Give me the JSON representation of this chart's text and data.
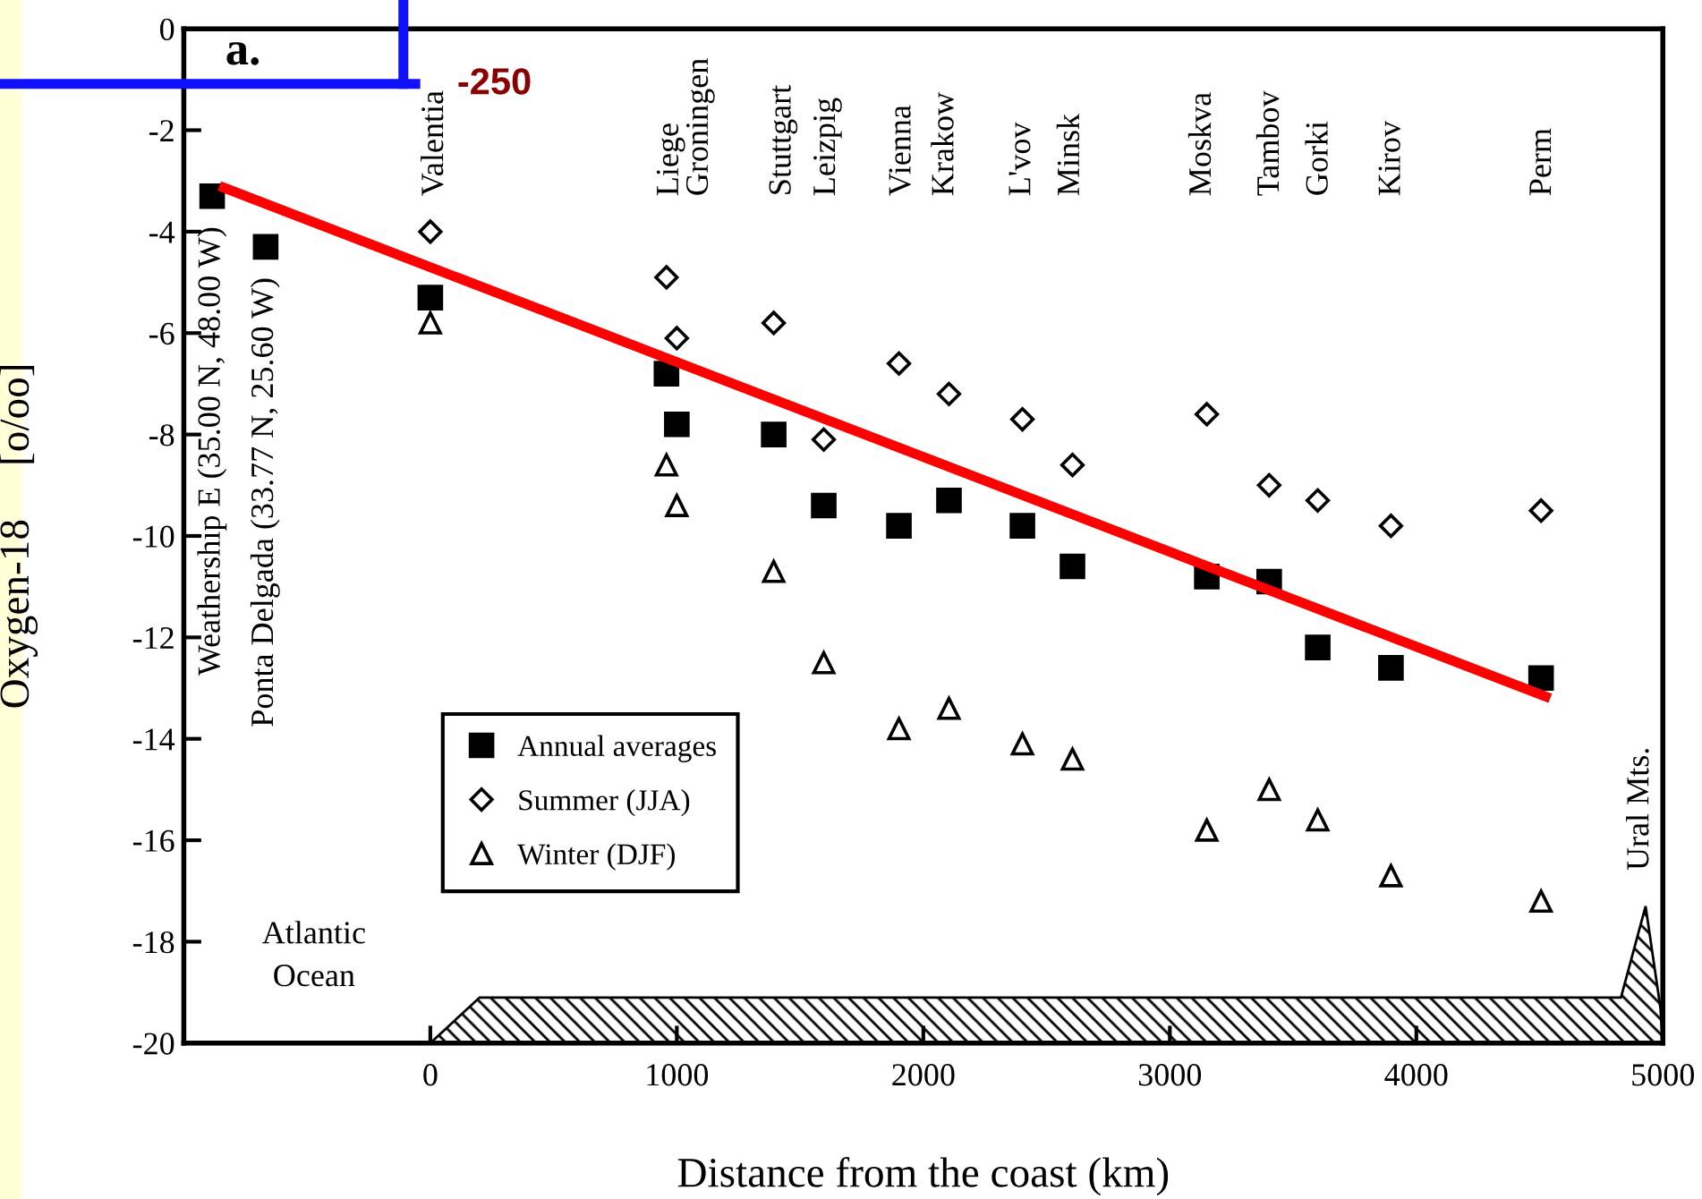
{
  "chart_data": {
    "type": "scatter",
    "xlabel": "Distance from the coast (km)",
    "ylabel": "Oxygen-18     [o/oo]",
    "xlim": [
      -1000,
      5000
    ],
    "xticks": [
      {
        "value": -1000,
        "label": null
      },
      0,
      1000,
      2000,
      3000,
      4000,
      5000
    ],
    "ylim": [
      -20,
      0
    ],
    "yticks": [
      -20,
      -18,
      -16,
      -14,
      -12,
      -10,
      -8,
      -6,
      -4,
      -2,
      0
    ],
    "grid": false,
    "legend": "bottom left",
    "series": [
      {
        "name": "Annual averages",
        "marker": "square",
        "color": "#000000",
        "x": [
          -885,
          -668,
          0,
          958,
          1000,
          1393,
          1596,
          1901,
          2104,
          2402,
          2605,
          3150,
          3403,
          3600,
          3897,
          4506
        ],
        "values": [
          -3.3,
          -4.3,
          -5.3,
          -6.8,
          -7.8,
          -8.0,
          -9.4,
          -9.8,
          -9.3,
          -9.8,
          -10.6,
          -10.8,
          -10.9,
          -12.2,
          -12.6,
          -12.8
        ]
      },
      {
        "name": "Summer (JJA)",
        "marker": "diamond",
        "color": "#000000",
        "x": [
          0,
          958,
          1000,
          1393,
          1596,
          1901,
          2104,
          2402,
          2605,
          3150,
          3403,
          3600,
          3897,
          4506
        ],
        "values": [
          -4.0,
          -4.9,
          -6.1,
          -5.8,
          -8.1,
          -6.6,
          -7.2,
          -7.7,
          -8.6,
          -7.6,
          -9.0,
          -9.3,
          -9.8,
          -9.5
        ]
      },
      {
        "name": "Winter (DJF)",
        "marker": "triangle",
        "color": "#000000",
        "x": [
          0,
          958,
          1000,
          1393,
          1596,
          1901,
          2104,
          2402,
          2605,
          3150,
          3403,
          3600,
          3897,
          4506
        ],
        "values": [
          -5.8,
          -8.6,
          -9.4,
          -10.7,
          -12.5,
          -13.8,
          -13.4,
          -14.1,
          -14.4,
          -15.8,
          -15.0,
          -15.6,
          -16.7,
          -17.2
        ]
      },
      {
        "type": "line",
        "marker": "none",
        "line_style": "solid",
        "color": "#ff0000",
        "x": [
          -856,
          4543
        ],
        "values": [
          -3.1,
          -13.2
        ]
      }
    ],
    "annotations": [
      "a.",
      "-250",
      "Weathership E (35.00 N, 48.00 W)",
      "Ponta Delgada (33.77 N, 25.60 W)",
      "Valentia",
      "Liege",
      "Groningen",
      "Stuttgart",
      "Leizpig",
      "Vienna",
      "Krakow",
      "L'vov",
      "Minsk",
      "Moskva",
      "Tambov",
      "Gorki",
      "Kirov",
      "Perm",
      "Ural Mts.",
      "Atlantic\nOcean"
    ]
  }
}
